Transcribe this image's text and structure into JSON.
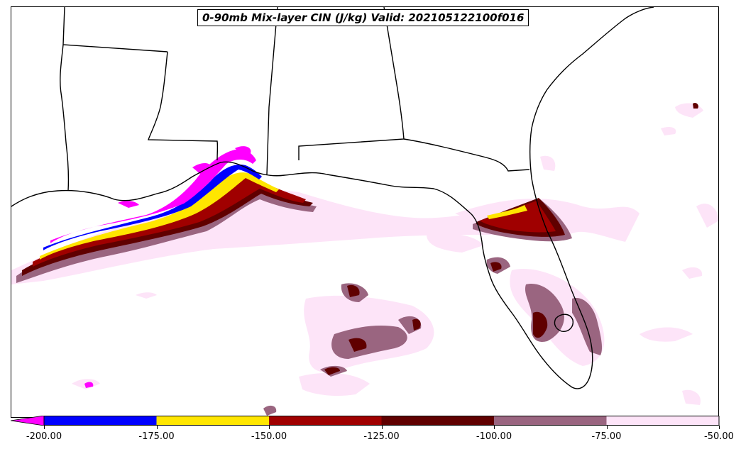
{
  "title": "0-90mb Mix-layer CIN (J/kg) Valid: 202105122100f016",
  "colorbar": {
    "extend": "min",
    "bins": [
      {
        "from": -200,
        "to": -175,
        "color": "#0000ff"
      },
      {
        "from": -175,
        "to": -150,
        "color": "#ffe600"
      },
      {
        "from": -150,
        "to": -125,
        "color": "#a00000"
      },
      {
        "from": -125,
        "to": -100,
        "color": "#600000"
      },
      {
        "from": -100,
        "to": -75,
        "color": "#9a6580"
      },
      {
        "from": -75,
        "to": -50,
        "color": "#fde4f8"
      }
    ],
    "below_min_color": "#ff00ff",
    "ticks": [
      "-200.00",
      "-175.00",
      "-150.00",
      "-125.00",
      "-100.00",
      "-75.00",
      "-50.00"
    ]
  },
  "map": {
    "region": "U.S. Gulf Coast and Florida",
    "field": "0-90mb Mix-layer CIN",
    "units": "J/kg",
    "boundary_color": "#000000"
  }
}
